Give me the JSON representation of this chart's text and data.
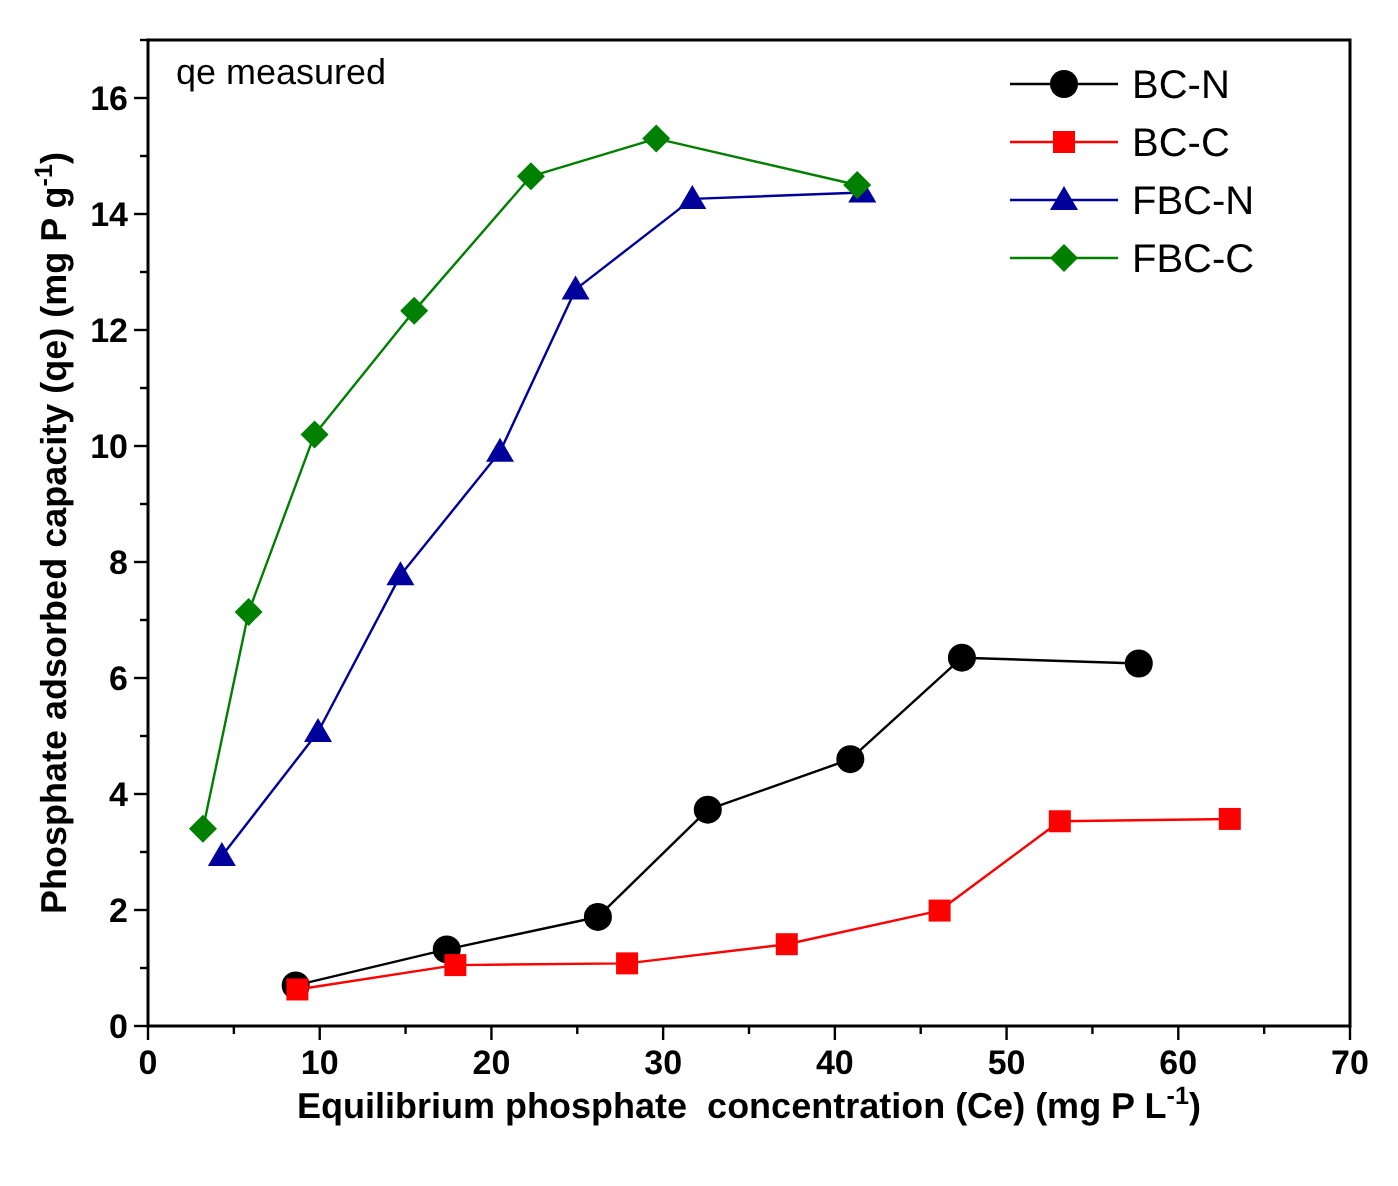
{
  "chart_data": {
    "type": "line",
    "xlabel": "Equilibrium phosphate  concentration (Ce) (mg P L$^{-1}$)",
    "ylabel": "Phosphate adsorbed capacity (qe) (mg P g$^{-1}$)",
    "annotations": [
      "qe measured"
    ],
    "xlim": [
      0,
      70
    ],
    "xticks": [
      0,
      {
        "value": 5,
        "label": null
      },
      10,
      {
        "value": 15,
        "label": null
      },
      20,
      {
        "value": 25,
        "label": null
      },
      30,
      {
        "value": 35,
        "label": null
      },
      40,
      {
        "value": 45,
        "label": null
      },
      50,
      {
        "value": 55,
        "label": null
      },
      60,
      {
        "value": 65,
        "label": null
      },
      70
    ],
    "ylim": [
      0,
      17
    ],
    "yticks": [
      0,
      {
        "value": 1,
        "label": null
      },
      2,
      {
        "value": 3,
        "label": null
      },
      4,
      {
        "value": 5,
        "label": null
      },
      6,
      {
        "value": 7,
        "label": null
      },
      8,
      {
        "value": 9,
        "label": null
      },
      10,
      {
        "value": 11,
        "label": null
      },
      12,
      {
        "value": 13,
        "label": null
      },
      14,
      {
        "value": 15,
        "label": null
      },
      16,
      {
        "value": 17,
        "label": null
      }
    ],
    "grid": false,
    "legend": "top right",
    "line_style": "solid",
    "series": [
      {
        "name": "BC-N",
        "color": "#000000",
        "marker": "circle",
        "x": [
          8.6,
          17.4,
          26.2,
          32.6,
          40.9,
          47.4,
          57.7
        ],
        "values": [
          0.7,
          1.32,
          1.88,
          3.73,
          4.6,
          6.35,
          6.25
        ]
      },
      {
        "name": "BC-C",
        "color": "#ff0000",
        "marker": "square",
        "x": [
          8.7,
          17.9,
          27.9,
          37.2,
          46.1,
          53.1,
          63.0
        ],
        "values": [
          0.63,
          1.05,
          1.08,
          1.41,
          1.99,
          3.53,
          3.57
        ]
      },
      {
        "name": "FBC-N",
        "color": "#00009c",
        "marker": "triangle",
        "x": [
          4.3,
          9.9,
          14.7,
          20.5,
          24.9,
          31.7,
          41.6
        ],
        "values": [
          2.93,
          5.07,
          7.77,
          9.9,
          12.7,
          14.26,
          14.37
        ]
      },
      {
        "name": "FBC-C",
        "color": "#008000",
        "marker": "diamond",
        "x": [
          3.2,
          5.86,
          9.7,
          15.5,
          22.3,
          29.6,
          41.3
        ],
        "values": [
          3.4,
          7.14,
          10.2,
          12.33,
          14.65,
          15.3,
          14.5
        ]
      }
    ]
  }
}
